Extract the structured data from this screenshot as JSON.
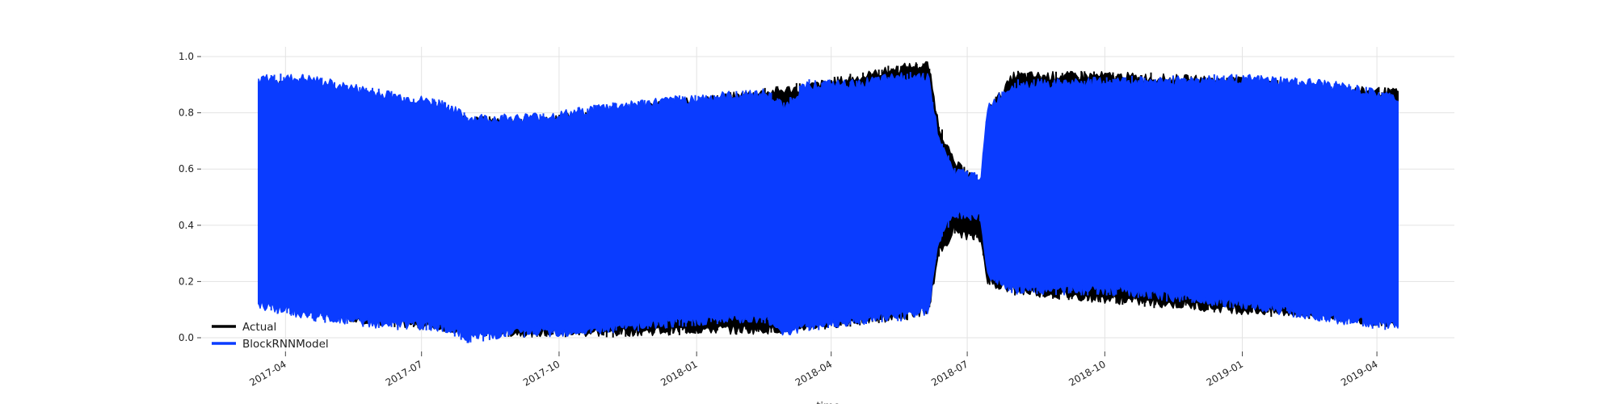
{
  "chart_data": {
    "type": "area",
    "title": "",
    "xlabel": "time",
    "ylabel": "",
    "x_tick_labels": [
      "2017-04",
      "2017-07",
      "2017-10",
      "2018-01",
      "2018-04",
      "2018-07",
      "2018-10",
      "2019-01",
      "2019-04"
    ],
    "y_tick_labels": [
      "0.0",
      "0.2",
      "0.4",
      "0.6",
      "0.8",
      "1.0"
    ],
    "ylim": [
      0.0,
      1.0
    ],
    "grid": true,
    "legend_position": "lower-left",
    "x_range": [
      "2017-03-14",
      "2019-04-15"
    ],
    "series": [
      {
        "name": "Actual",
        "color": "#000000",
        "points": [
          {
            "t": "2017-03-14",
            "low": 0.15,
            "high": 0.9
          },
          {
            "t": "2017-04-15",
            "low": 0.1,
            "high": 0.89
          },
          {
            "t": "2017-06-01",
            "low": 0.06,
            "high": 0.84
          },
          {
            "t": "2017-07-15",
            "low": 0.04,
            "high": 0.8
          },
          {
            "t": "2017-08-01",
            "low": 0.03,
            "high": 0.77
          },
          {
            "t": "2017-09-01",
            "low": 0.02,
            "high": 0.77
          },
          {
            "t": "2017-10-01",
            "low": 0.02,
            "high": 0.78
          },
          {
            "t": "2017-11-01",
            "low": 0.02,
            "high": 0.8
          },
          {
            "t": "2018-01-01",
            "low": 0.03,
            "high": 0.84
          },
          {
            "t": "2018-02-15",
            "low": 0.03,
            "high": 0.87
          },
          {
            "t": "2018-03-15",
            "low": 0.04,
            "high": 0.89
          },
          {
            "t": "2018-04-15",
            "low": 0.06,
            "high": 0.92
          },
          {
            "t": "2018-05-20",
            "low": 0.08,
            "high": 0.96
          },
          {
            "t": "2018-06-05",
            "low": 0.1,
            "high": 0.97
          },
          {
            "t": "2018-06-12",
            "low": 0.3,
            "high": 0.75
          },
          {
            "t": "2018-06-22",
            "low": 0.38,
            "high": 0.62
          },
          {
            "t": "2018-07-10",
            "low": 0.35,
            "high": 0.55
          },
          {
            "t": "2018-07-15",
            "low": 0.2,
            "high": 0.8
          },
          {
            "t": "2018-08-01",
            "low": 0.17,
            "high": 0.93
          },
          {
            "t": "2018-10-01",
            "low": 0.14,
            "high": 0.93
          },
          {
            "t": "2019-01-01",
            "low": 0.1,
            "high": 0.91
          },
          {
            "t": "2019-03-01",
            "low": 0.08,
            "high": 0.88
          },
          {
            "t": "2019-04-15",
            "low": 0.05,
            "high": 0.87
          }
        ]
      },
      {
        "name": "BlockRNNModel",
        "color": "#0a3cff",
        "points": [
          {
            "t": "2017-03-14",
            "low": 0.12,
            "high": 0.92
          },
          {
            "t": "2017-04-15",
            "low": 0.08,
            "high": 0.92
          },
          {
            "t": "2017-06-01",
            "low": 0.05,
            "high": 0.87
          },
          {
            "t": "2017-07-15",
            "low": 0.04,
            "high": 0.83
          },
          {
            "t": "2017-08-01",
            "low": 0.0,
            "high": 0.78
          },
          {
            "t": "2017-09-01",
            "low": 0.02,
            "high": 0.78
          },
          {
            "t": "2017-10-01",
            "low": 0.02,
            "high": 0.79
          },
          {
            "t": "2017-11-01",
            "low": 0.03,
            "high": 0.82
          },
          {
            "t": "2018-01-01",
            "low": 0.06,
            "high": 0.85
          },
          {
            "t": "2018-02-15",
            "low": 0.07,
            "high": 0.87
          },
          {
            "t": "2018-03-01",
            "low": 0.02,
            "high": 0.82
          },
          {
            "t": "2018-03-15",
            "low": 0.04,
            "high": 0.9
          },
          {
            "t": "2018-04-15",
            "low": 0.06,
            "high": 0.9
          },
          {
            "t": "2018-05-20",
            "low": 0.08,
            "high": 0.93
          },
          {
            "t": "2018-06-05",
            "low": 0.1,
            "high": 0.93
          },
          {
            "t": "2018-06-12",
            "low": 0.35,
            "high": 0.7
          },
          {
            "t": "2018-06-22",
            "low": 0.44,
            "high": 0.59
          },
          {
            "t": "2018-07-10",
            "low": 0.43,
            "high": 0.57
          },
          {
            "t": "2018-07-15",
            "low": 0.22,
            "high": 0.82
          },
          {
            "t": "2018-08-01",
            "low": 0.17,
            "high": 0.9
          },
          {
            "t": "2018-10-01",
            "low": 0.17,
            "high": 0.91
          },
          {
            "t": "2019-01-01",
            "low": 0.12,
            "high": 0.92
          },
          {
            "t": "2019-03-01",
            "low": 0.07,
            "high": 0.9
          },
          {
            "t": "2019-04-15",
            "low": 0.04,
            "high": 0.85
          }
        ]
      }
    ]
  }
}
